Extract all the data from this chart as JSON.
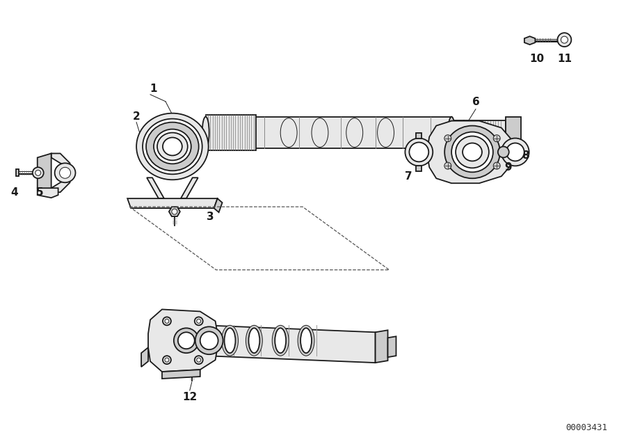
{
  "bg_color": "#ffffff",
  "line_color": "#1a1a1a",
  "diagram_id": "00003431",
  "figsize": [
    9.0,
    6.35
  ],
  "dpi": 100,
  "lw_main": 1.3,
  "lw_thin": 0.7,
  "lw_dash": 0.8,
  "gray_light": "#e8e8e8",
  "gray_mid": "#cccccc",
  "gray_dark": "#aaaaaa"
}
